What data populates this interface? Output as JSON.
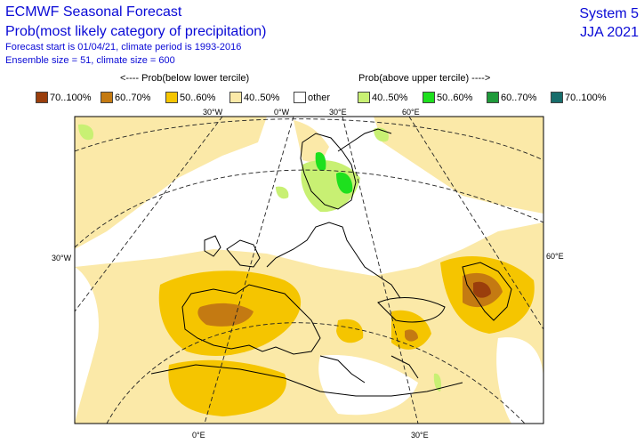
{
  "header": {
    "title": "ECMWF Seasonal Forecast",
    "subtitle": "Prob(most likely category of precipitation)",
    "line3": "Forecast start is 01/04/21, climate period is 1993-2016",
    "line4": "Ensemble size = 51, climate size = 600",
    "system": "System 5",
    "season": "JJA 2021"
  },
  "legend": {
    "below_label": "<---- Prob(below lower tercile)",
    "above_label": "Prob(above upper tercile) ---->",
    "items": [
      {
        "label": "70..100%",
        "color": "#9a3e0c"
      },
      {
        "label": "60..70%",
        "color": "#c47a12"
      },
      {
        "label": "50..60%",
        "color": "#f5c500"
      },
      {
        "label": "40..50%",
        "color": "#fbe9a8"
      },
      {
        "label": "other",
        "color": "#ffffff"
      },
      {
        "label": "40..50%",
        "color": "#c8f073"
      },
      {
        "label": "50..60%",
        "color": "#1ee01e"
      },
      {
        "label": "60..70%",
        "color": "#1f9a3a"
      },
      {
        "label": "70..100%",
        "color": "#176d6b"
      }
    ]
  },
  "map": {
    "graticule_labels": {
      "top_30w": "30°W",
      "top_0": "0°W",
      "top_30e": "30°E",
      "top_60e": "60°E",
      "left_30w": "30°W",
      "right_60e": "60°E",
      "bottom_0": "0°E",
      "bottom_30e": "30°E"
    }
  }
}
